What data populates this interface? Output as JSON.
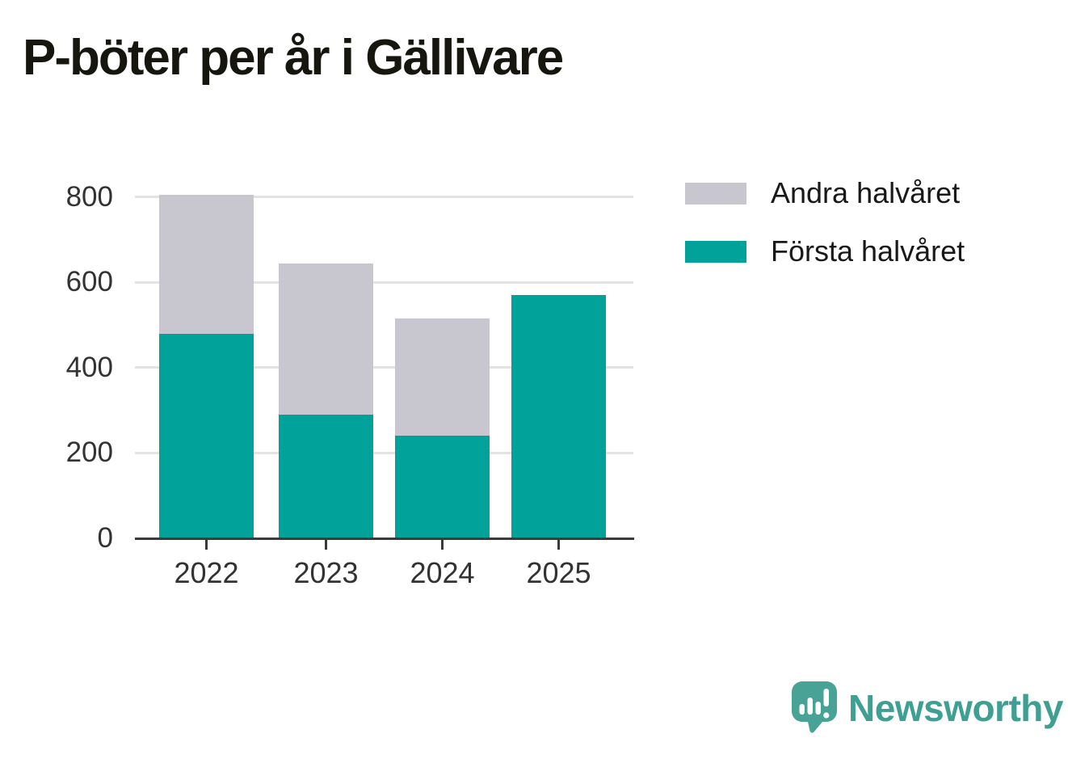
{
  "chart_data": {
    "type": "bar",
    "stacked": true,
    "title": "P-böter per år i Gällivare",
    "categories": [
      "2022",
      "2023",
      "2024",
      "2025"
    ],
    "series": [
      {
        "name": "Första halvåret",
        "color": "#00a29a",
        "values": [
          480,
          290,
          240,
          570
        ]
      },
      {
        "name": "Andra halvåret",
        "color": "#c8c6ce",
        "values": [
          325,
          355,
          275,
          0
        ]
      }
    ],
    "stack_totals": [
      805,
      645,
      515,
      570
    ],
    "xlabel": "",
    "ylabel": "",
    "ylim": [
      0,
      800
    ],
    "yticks": [
      0,
      200,
      400,
      600,
      800
    ],
    "grid": true,
    "gridline_color": "#e3e3e3",
    "axis_color": "#3a3a3a",
    "tick_label_color": "#333333",
    "legend_position": "right-top",
    "legend": [
      {
        "label": "Andra halvåret",
        "color": "#c8c6ce"
      },
      {
        "label": "Första halvåret",
        "color": "#00a29a"
      }
    ]
  },
  "branding": {
    "logo_text": "Newsworthy",
    "logo_color": "#3f9f92",
    "logo_icon": "newsworthy-speech-bubble-barchart-icon",
    "icon_color": "#48a295"
  }
}
